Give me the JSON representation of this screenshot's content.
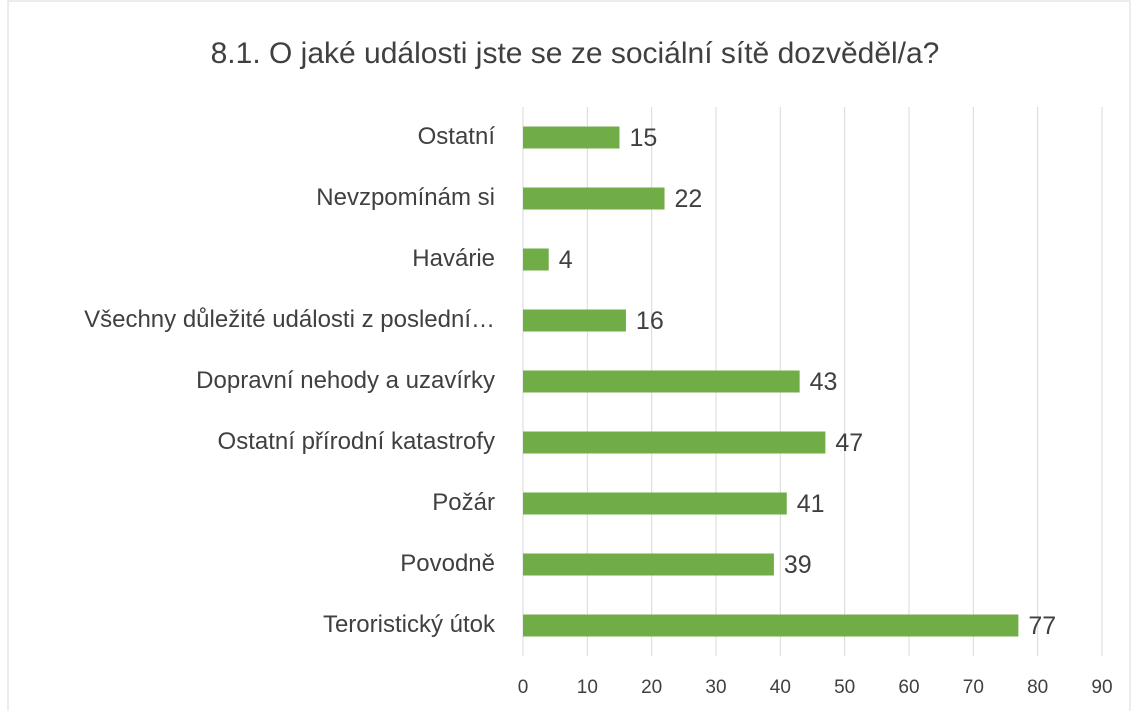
{
  "chart_data": {
    "type": "bar",
    "orientation": "horizontal",
    "title": "8.1. O jaké události jste se ze sociální sítě dozvěděl/a?",
    "categories": [
      "Ostatní",
      "Nevzpomínám si",
      "Havárie",
      "Všechny důležité události z poslední…",
      "Dopravní nehody a uzavírky",
      "Ostatní přírodní katastrofy",
      "Požár",
      "Povodně",
      "Teroristický útok"
    ],
    "values": [
      15,
      22,
      4,
      16,
      43,
      47,
      41,
      39,
      77
    ],
    "color": "#70ad47",
    "xlim": [
      0,
      90
    ],
    "xticks": [
      0,
      10,
      20,
      30,
      40,
      50,
      60,
      70,
      80,
      90
    ],
    "grid": true
  }
}
